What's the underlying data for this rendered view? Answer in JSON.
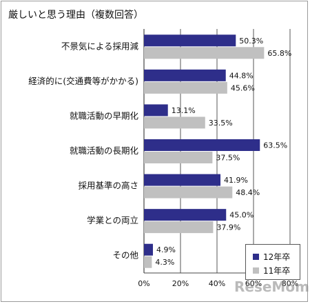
{
  "title": "厳しいと思う理由（複数回答）",
  "watermark": "ReseMom",
  "colors": {
    "series1": "#2e2e8a",
    "series2": "#c0c0c0",
    "grid": "#444444"
  },
  "chart_data": {
    "type": "bar",
    "orientation": "horizontal",
    "title": "厳しいと思う理由（複数回答）",
    "categories": [
      "不景気による採用減",
      "経済的に(交通費等がかかる)",
      "就職活動の早期化",
      "就職活動の長期化",
      "採用基準の高さ",
      "学業との両立",
      "その他"
    ],
    "series": [
      {
        "name": "12年卒",
        "values": [
          50.3,
          44.8,
          13.1,
          63.5,
          41.9,
          45.0,
          4.9
        ],
        "labels": [
          "50.3%",
          "44.8%",
          "13.1%",
          "63.5%",
          "41.9%",
          "45.0%",
          "4.9%"
        ]
      },
      {
        "name": "11年卒",
        "values": [
          65.8,
          45.6,
          33.5,
          37.5,
          48.4,
          37.9,
          4.3
        ],
        "labels": [
          "65.8%",
          "45.6%",
          "33.5%",
          "37.5%",
          "48.4%",
          "37.9%",
          "4.3%"
        ]
      }
    ],
    "x_ticks": [
      "0%",
      "20%",
      "40%",
      "60%",
      "80%"
    ],
    "xlim": [
      0,
      80
    ],
    "grid": true,
    "legend_position": "bottom-right"
  }
}
